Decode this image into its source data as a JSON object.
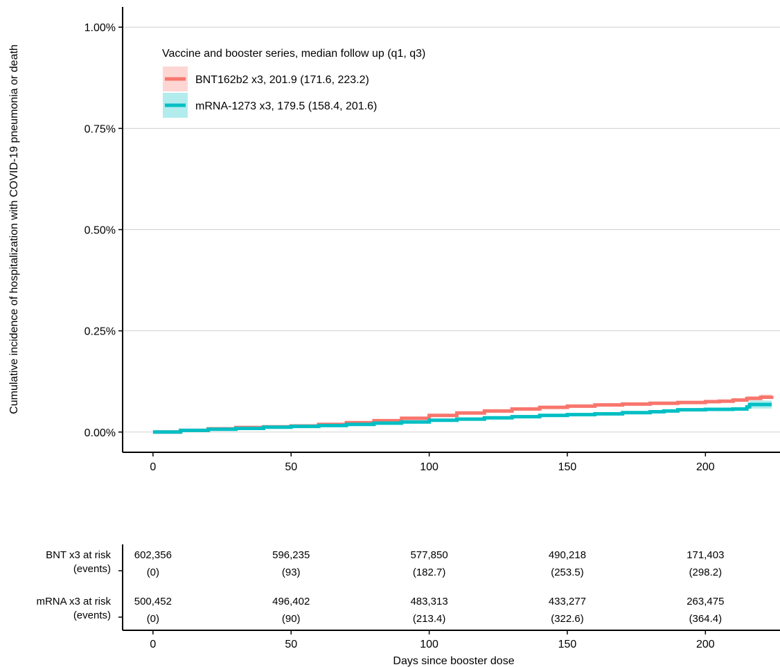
{
  "chart_data": {
    "type": "line",
    "title": "",
    "ylabel": "Cumulative incidence of hospitalization with COVID-19 pneumonia or death",
    "xlabel": "Days since booster dose",
    "xlim": [
      -11,
      227
    ],
    "ylim": [
      -0.05,
      1.05
    ],
    "x_ticks": [
      0,
      50,
      100,
      150,
      200
    ],
    "y_ticks": [
      0,
      0.25,
      0.5,
      0.75,
      1.0
    ],
    "y_tick_labels": [
      "0.00%",
      "0.25%",
      "0.50%",
      "0.75%",
      "1.00%"
    ],
    "grid": "horizontal major",
    "legend": {
      "title": "Vaccine and booster series, median follow up (q1, q3)",
      "position": "top-left",
      "entries": [
        "BNT162b2 x3, 201.9 (171.6, 223.2)",
        "mRNA-1273 x3, 179.5 (158.4, 201.6)"
      ]
    },
    "series": [
      {
        "name": "BNT162b2 x3, 201.9 (171.6, 223.2)",
        "color": "#F8766D",
        "band_color": "#F8766D",
        "x": [
          0,
          10,
          20,
          30,
          40,
          50,
          60,
          70,
          80,
          90,
          100,
          110,
          120,
          130,
          140,
          150,
          160,
          170,
          180,
          190,
          200,
          205,
          210,
          215,
          220,
          224
        ],
        "y": [
          0,
          0.004,
          0.008,
          0.011,
          0.013,
          0.015,
          0.019,
          0.023,
          0.028,
          0.034,
          0.041,
          0.047,
          0.052,
          0.057,
          0.061,
          0.064,
          0.067,
          0.069,
          0.071,
          0.073,
          0.075,
          0.076,
          0.079,
          0.083,
          0.086,
          0.09
        ],
        "lower": [
          0,
          0.003,
          0.007,
          0.009,
          0.011,
          0.013,
          0.016,
          0.02,
          0.025,
          0.031,
          0.038,
          0.044,
          0.049,
          0.054,
          0.058,
          0.061,
          0.064,
          0.066,
          0.068,
          0.07,
          0.071,
          0.072,
          0.075,
          0.077,
          0.079,
          0.082
        ],
        "upper": [
          0,
          0.005,
          0.009,
          0.013,
          0.015,
          0.017,
          0.022,
          0.026,
          0.031,
          0.037,
          0.044,
          0.05,
          0.055,
          0.06,
          0.064,
          0.067,
          0.07,
          0.072,
          0.074,
          0.076,
          0.079,
          0.08,
          0.084,
          0.089,
          0.093,
          0.098
        ]
      },
      {
        "name": "mRNA-1273 x3, 179.5 (158.4, 201.6)",
        "color": "#00BFC4",
        "band_color": "#00BFC4",
        "x": [
          0,
          10,
          20,
          30,
          40,
          50,
          60,
          70,
          80,
          90,
          100,
          110,
          120,
          130,
          140,
          150,
          160,
          170,
          180,
          185,
          190,
          200,
          210,
          215,
          216,
          220,
          224
        ],
        "y": [
          0,
          0.004,
          0.007,
          0.009,
          0.012,
          0.014,
          0.016,
          0.019,
          0.022,
          0.025,
          0.029,
          0.032,
          0.035,
          0.038,
          0.041,
          0.043,
          0.045,
          0.048,
          0.05,
          0.052,
          0.055,
          0.056,
          0.057,
          0.062,
          0.068,
          0.068,
          0.068
        ],
        "lower": [
          0,
          0.003,
          0.006,
          0.008,
          0.01,
          0.012,
          0.014,
          0.017,
          0.02,
          0.023,
          0.027,
          0.03,
          0.033,
          0.036,
          0.039,
          0.041,
          0.043,
          0.045,
          0.047,
          0.049,
          0.052,
          0.053,
          0.053,
          0.057,
          0.058,
          0.058,
          0.058
        ],
        "upper": [
          0,
          0.005,
          0.008,
          0.011,
          0.014,
          0.016,
          0.018,
          0.021,
          0.024,
          0.027,
          0.031,
          0.034,
          0.037,
          0.04,
          0.043,
          0.045,
          0.048,
          0.051,
          0.053,
          0.055,
          0.058,
          0.059,
          0.061,
          0.067,
          0.078,
          0.078,
          0.078
        ]
      }
    ]
  },
  "risk_table": {
    "x": [
      0,
      50,
      100,
      150,
      200
    ],
    "xlabel": "Days since booster dose",
    "rows": [
      {
        "label_line1": "BNT x3 at risk",
        "label_line2": "(events)",
        "at_risk": [
          "602,356",
          "596,235",
          "577,850",
          "490,218",
          "171,403"
        ],
        "events": [
          "(0)",
          "(93)",
          "(182.7)",
          "(253.5)",
          "(298.2)"
        ]
      },
      {
        "label_line1": "mRNA x3 at risk",
        "label_line2": "(events)",
        "at_risk": [
          "500,452",
          "496,402",
          "483,313",
          "433,277",
          "263,475"
        ],
        "events": [
          "(0)",
          "(90)",
          "(213.4)",
          "(322.6)",
          "(364.4)"
        ]
      }
    ]
  }
}
